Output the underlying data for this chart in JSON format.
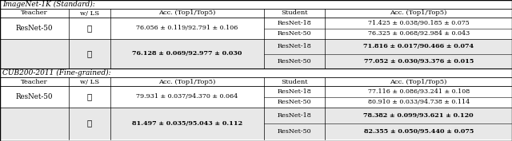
{
  "fig_width": 6.4,
  "fig_height": 1.77,
  "dpi": 100,
  "background_color": "#ffffff",
  "section1_title": "ImageNet-1K (Standard):",
  "section2_title": "CUB200-2011 (Fine-grained):",
  "header": [
    "Teacher",
    "w/ LS",
    "Acc. (Top1/Top5)",
    "Student",
    "Acc. (Top1/Top5)"
  ],
  "table1_rows": [
    {
      "teacher": "ResNet-50",
      "wls": "✗",
      "teacher_acc": "76.056 ± 0.119/92.791 ± 0.106",
      "teacher_acc_bold": false,
      "shaded": false,
      "students": [
        {
          "name": "ResNet-18",
          "acc": "71.425 ± 0.038/90.185 ± 0.075",
          "bold": false
        },
        {
          "name": "ResNet-50",
          "acc": "76.325 ± 0.068/92.984 ± 0.043",
          "bold": false
        }
      ]
    },
    {
      "teacher": "",
      "wls": "✓",
      "teacher_acc": "76.128 ± 0.069/92.977 ± 0.030",
      "teacher_acc_bold": true,
      "shaded": true,
      "students": [
        {
          "name": "ResNet-18",
          "acc": "71.816 ± 0.017/90.466 ± 0.074",
          "bold": true
        },
        {
          "name": "ResNet-50",
          "acc": "77.052 ± 0.030/93.376 ± 0.015",
          "bold": true
        }
      ]
    }
  ],
  "table2_rows": [
    {
      "teacher": "ResNet-50",
      "wls": "✗",
      "teacher_acc": "79.931 ± 0.037/94.370 ± 0.064",
      "teacher_acc_bold": false,
      "shaded": false,
      "students": [
        {
          "name": "ResNet-18",
          "acc": "77.116 ± 0.086/93.241 ± 0.108",
          "bold": false
        },
        {
          "name": "ResNet-50",
          "acc": "80.910 ± 0.033/94.738 ± 0.114",
          "bold": false
        }
      ]
    },
    {
      "teacher": "",
      "wls": "✓",
      "teacher_acc": "81.497 ± 0.035/95.043 ± 0.112",
      "teacher_acc_bold": true,
      "shaded": true,
      "students": [
        {
          "name": "ResNet-18",
          "acc": "78.382 ± 0.099/93.621 ± 0.120",
          "bold": true
        },
        {
          "name": "ResNet-50",
          "acc": "82.355 ± 0.050/95.440 ± 0.075",
          "bold": true
        }
      ]
    }
  ],
  "shade_color": "#e8e8e8",
  "font_size": 5.8,
  "header_font_size": 6.0,
  "section_font_size": 6.5,
  "wls_font_size": 7.5
}
